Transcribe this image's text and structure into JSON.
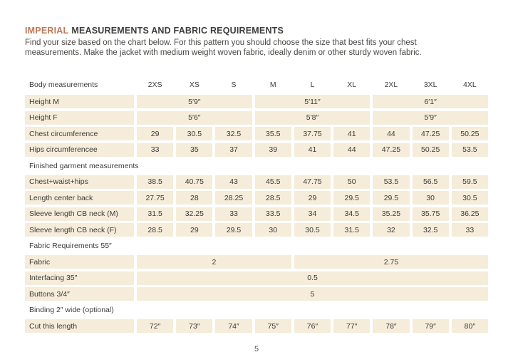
{
  "page": {
    "title": {
      "highlight": "IMPERIAL",
      "rest": "MEASUREMENTS AND FABRIC REQUIREMENTS"
    },
    "intro_lines": [
      "Find your size based on the chart below. For this pattern you should choose the size that best fits your chest",
      "measurements. Make the jacket with medium weight woven fabric, ideally denim or other sturdy woven fabric."
    ],
    "page_number": "5"
  },
  "colors": {
    "accent": "#bf7857",
    "cell_background": "#f5ecda",
    "text": "#3d3c3b"
  },
  "table": {
    "header": {
      "label": "Body measurements",
      "sizes": [
        "2XS",
        "XS",
        "S",
        "M",
        "L",
        "XL",
        "2XL",
        "3XL",
        "4XL"
      ]
    },
    "rows": [
      {
        "type": "cells-span3",
        "label": "Height M",
        "values": [
          "5′9″",
          "5′11″",
          "6′1″"
        ]
      },
      {
        "type": "cells-span3",
        "label": "Height F",
        "values": [
          "5′6″",
          "5′8″",
          "5′9″"
        ]
      },
      {
        "type": "cells",
        "label": "Chest circumference",
        "values": [
          "29",
          "30.5",
          "32.5",
          "35.5",
          "37.75",
          "41",
          "44",
          "47.25",
          "50.25"
        ]
      },
      {
        "type": "cells",
        "label": "Hips circumferencee",
        "values": [
          "33",
          "35",
          "37",
          "39",
          "41",
          "44",
          "47.25",
          "50.25",
          "53.5"
        ]
      },
      {
        "type": "section",
        "label": "Finished garment measurements"
      },
      {
        "type": "cells",
        "label": "Chest+waist+hips",
        "values": [
          "38.5",
          "40.75",
          "43",
          "45.5",
          "47.75",
          "50",
          "53.5",
          "56.5",
          "59.5"
        ]
      },
      {
        "type": "cells",
        "label": "Length center back",
        "values": [
          "27.75",
          "28",
          "28.25",
          "28.5",
          "29",
          "29.5",
          "29.5",
          "30",
          "30.5"
        ]
      },
      {
        "type": "cells",
        "label": "Sleeve length CB neck (M)",
        "values": [
          "31.5",
          "32.25",
          "33",
          "33.5",
          "34",
          "34.5",
          "35.25",
          "35.75",
          "36.25"
        ]
      },
      {
        "type": "cells",
        "label": "Sleeve length CB neck (F)",
        "values": [
          "28.5",
          "29",
          "29.5",
          "30",
          "30.5",
          "31.5",
          "32",
          "32.5",
          "33"
        ]
      },
      {
        "type": "section",
        "label": "Fabric Requirements 55″"
      },
      {
        "type": "spans",
        "label": "Fabric",
        "spans": [
          {
            "cols": 4,
            "value": "2"
          },
          {
            "cols": 5,
            "value": "2.75"
          }
        ]
      },
      {
        "type": "spans",
        "label": "Interfacing 35″",
        "spans": [
          {
            "cols": 9,
            "value": "0.5"
          }
        ]
      },
      {
        "type": "spans",
        "label": "Buttons 3/4″",
        "spans": [
          {
            "cols": 9,
            "value": "5"
          }
        ]
      },
      {
        "type": "section",
        "label": "Binding 2″ wide (optional)"
      },
      {
        "type": "cells",
        "label": "Cut this length",
        "values": [
          "72″",
          "73″",
          "74″",
          "75″",
          "76″",
          "77″",
          "78″",
          "79″",
          "80″"
        ]
      }
    ]
  }
}
